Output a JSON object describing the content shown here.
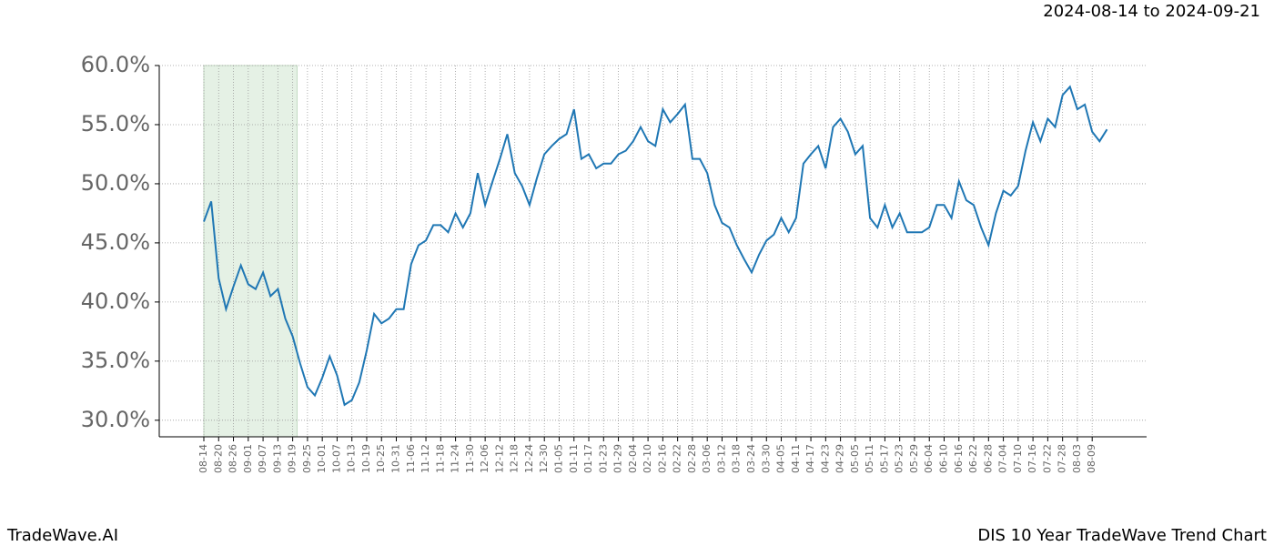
{
  "chart_data": {
    "type": "line",
    "subtitle": "2024-08-14 to 2024-09-21",
    "footer_left": "TradeWave.AI",
    "footer_right": "DIS 10 Year TradeWave Trend Chart",
    "categories": [
      "08-14",
      null,
      "08-20",
      null,
      "08-26",
      null,
      "09-01",
      null,
      "09-07",
      null,
      "09-13",
      null,
      "09-19",
      null,
      "09-25",
      null,
      "10-01",
      null,
      "10-07",
      null,
      "10-13",
      null,
      "10-19",
      null,
      "10-25",
      null,
      "10-31",
      null,
      "11-06",
      null,
      "11-12",
      null,
      "11-18",
      null,
      "11-24",
      null,
      "11-30",
      null,
      "12-06",
      null,
      "12-12",
      null,
      "12-18",
      null,
      "12-24",
      null,
      "12-30",
      null,
      "01-05",
      null,
      "01-11",
      null,
      "01-17",
      null,
      "01-23",
      null,
      "01-29",
      null,
      "02-04",
      null,
      "02-10",
      null,
      "02-16",
      null,
      "02-22",
      null,
      "02-28",
      null,
      "03-06",
      null,
      "03-12",
      null,
      "03-18",
      null,
      "03-24",
      null,
      "03-30",
      null,
      "04-05",
      null,
      "04-11",
      null,
      "04-17",
      null,
      "04-23",
      null,
      "04-29",
      null,
      "05-05",
      null,
      "05-11",
      null,
      "05-17",
      null,
      "05-23",
      null,
      "05-29",
      null,
      "06-04",
      null,
      "06-10",
      null,
      "06-16",
      null,
      "06-22",
      null,
      "06-28",
      null,
      "07-04",
      null,
      "07-10",
      null,
      "07-16",
      null,
      "07-22",
      null,
      "07-28",
      null,
      "08-03",
      null,
      "08-09",
      null,
      null
    ],
    "values": [
      46.8,
      48.5,
      42,
      39.4,
      41.3,
      43.1,
      41.5,
      41.1,
      42.5,
      40.5,
      41.1,
      38.6,
      37.1,
      34.8,
      32.8,
      32.1,
      33.6,
      35.4,
      33.8,
      31.3,
      31.7,
      33.2,
      35.9,
      39.0,
      38.2,
      38.6,
      39.4,
      39.4,
      43.2,
      44.8,
      45.2,
      46.5,
      46.5,
      45.9,
      47.5,
      46.3,
      47.5,
      50.9,
      48.2,
      50.2,
      52.1,
      54.2,
      50.9,
      49.8,
      48.2,
      50.5,
      52.5,
      53.2,
      53.8,
      54.2,
      56.3,
      52.1,
      52.5,
      51.3,
      51.7,
      51.7,
      52.5,
      52.8,
      53.6,
      54.8,
      53.6,
      53.2,
      56.3,
      55.2,
      55.9,
      56.7,
      52.1,
      52.1,
      50.9,
      48.2,
      46.7,
      46.3,
      44.8,
      43.6,
      42.5,
      44.0,
      45.2,
      45.7,
      47.1,
      45.9,
      47.1,
      51.7,
      52.5,
      53.2,
      51.3,
      54.8,
      55.5,
      54.4,
      52.5,
      53.2,
      47.1,
      46.3,
      48.2,
      46.3,
      47.5,
      45.9,
      45.9,
      45.9,
      46.3,
      48.2,
      48.2,
      47.1,
      50.2,
      48.6,
      48.2,
      46.3,
      44.8,
      47.5,
      49.4,
      49.0,
      49.8,
      52.8,
      55.2,
      53.6,
      55.5,
      54.8,
      57.5,
      58.2,
      56.3,
      56.7,
      54.4,
      53.6,
      54.6
    ],
    "color": "#1f77b4",
    "highlight_range": [
      0,
      12.6
    ],
    "highlight_color": "#d5e8d4",
    "ylim": [
      28.6,
      60
    ],
    "yticks": [
      {
        "value": 30,
        "label": "30.0%"
      },
      {
        "value": 35,
        "label": "35.0%"
      },
      {
        "value": 40,
        "label": "40.0%"
      },
      {
        "value": 45,
        "label": "45.0%"
      },
      {
        "value": 50,
        "label": "50.0%"
      },
      {
        "value": 55,
        "label": "55.0%"
      },
      {
        "value": 60,
        "label": "60.0%"
      }
    ],
    "grid": true
  }
}
